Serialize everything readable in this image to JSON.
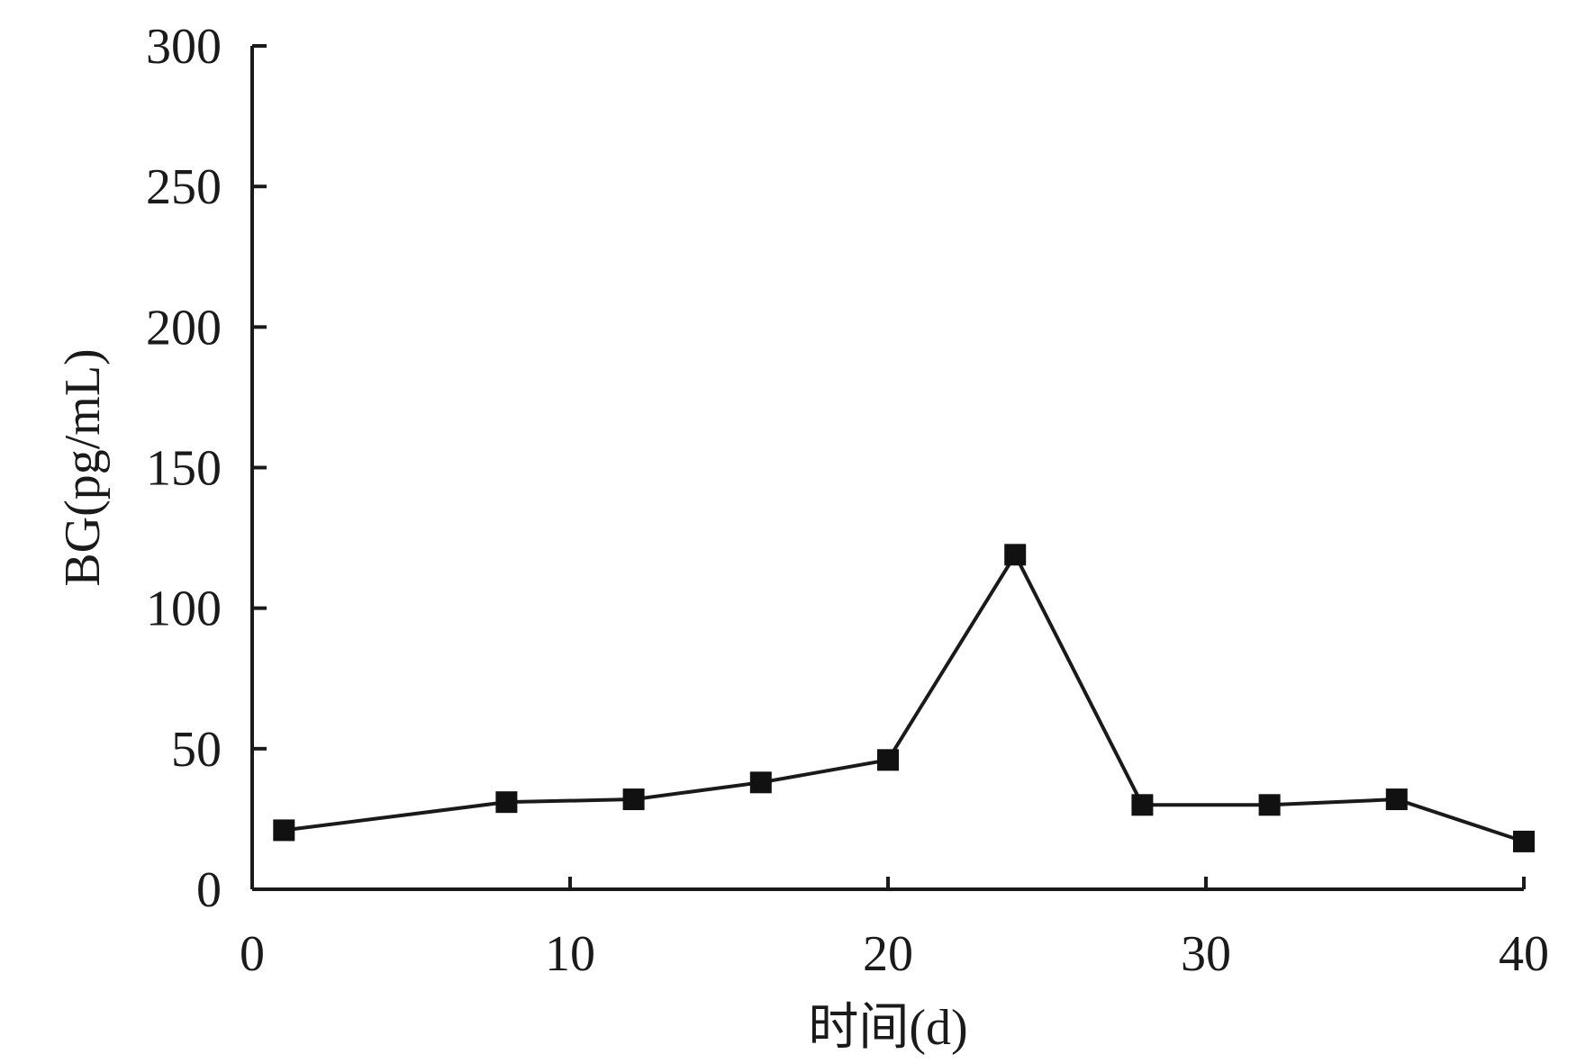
{
  "chart_data": {
    "type": "line",
    "xlabel": "时间(d)",
    "ylabel": "BG(pg/mL)",
    "xlim": [
      0,
      40
    ],
    "ylim": [
      0,
      300
    ],
    "xticks": [
      0,
      10,
      20,
      30,
      40
    ],
    "yticks": [
      0,
      50,
      100,
      150,
      200,
      250,
      300
    ],
    "grid": false,
    "series": [
      {
        "marker": "square",
        "color": "#111111",
        "x": [
          1,
          8,
          12,
          16,
          20,
          24,
          28,
          32,
          36,
          40
        ],
        "y": [
          21,
          31,
          32,
          38,
          46,
          119,
          30,
          30,
          32,
          17
        ]
      }
    ]
  }
}
